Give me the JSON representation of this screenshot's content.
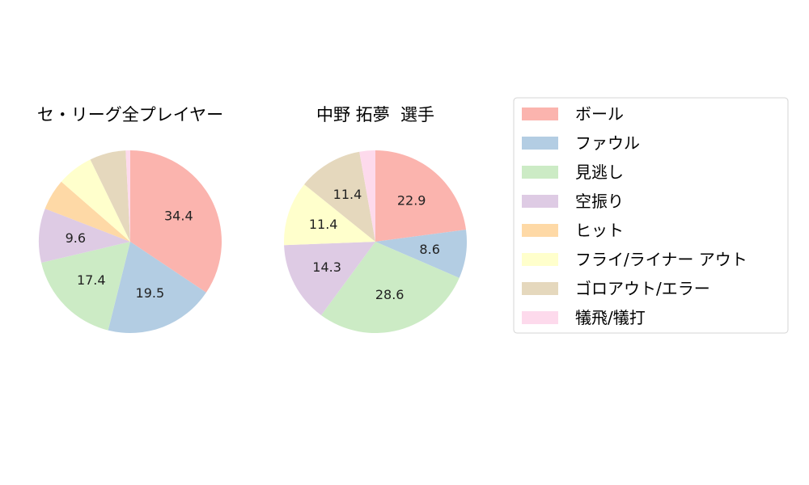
{
  "colors": {
    "ball": "#fbb4ae",
    "foul": "#b3cde3",
    "called_strike": "#ccebc5",
    "swinging_strike": "#decbe4",
    "hit": "#fed9a6",
    "fly_liner_out": "#ffffcc",
    "ground_error": "#e5d8bd",
    "sacrifice": "#fddaec"
  },
  "legend": {
    "items": [
      {
        "label": "ボール",
        "color": "#fbb4ae"
      },
      {
        "label": "ファウル",
        "color": "#b3cde3"
      },
      {
        "label": "見逃し",
        "color": "#ccebc5"
      },
      {
        "label": "空振り",
        "color": "#decbe4"
      },
      {
        "label": "ヒット",
        "color": "#fed9a6"
      },
      {
        "label": "フライ/ライナー アウト",
        "color": "#ffffcc"
      },
      {
        "label": "ゴロアウト/エラー",
        "color": "#e5d8bd"
      },
      {
        "label": "犠飛/犠打",
        "color": "#fddaec"
      }
    ]
  },
  "chart_data": [
    {
      "type": "pie",
      "title": "セ・リーグ全プレイヤー",
      "categories": [
        "ボール",
        "ファウル",
        "見逃し",
        "空振り",
        "ヒット",
        "フライ/ライナー アウト",
        "ゴロアウト/エラー",
        "犠飛/犠打"
      ],
      "values": [
        34.4,
        19.5,
        17.4,
        9.6,
        5.5,
        6.4,
        6.4,
        0.8
      ],
      "labels": [
        "34.4",
        "19.5",
        "17.4",
        "9.6",
        "",
        "",
        "",
        ""
      ]
    },
    {
      "type": "pie",
      "title": "中野 拓夢  選手",
      "categories": [
        "ボール",
        "ファウル",
        "見逃し",
        "空振り",
        "ヒット",
        "フライ/ライナー アウト",
        "ゴロアウト/エラー",
        "犠飛/犠打"
      ],
      "values": [
        22.9,
        8.6,
        28.6,
        14.3,
        0,
        11.4,
        11.4,
        2.8
      ],
      "labels": [
        "22.9",
        "8.6",
        "28.6",
        "14.3",
        "",
        "11.4",
        "11.4",
        ""
      ]
    }
  ]
}
